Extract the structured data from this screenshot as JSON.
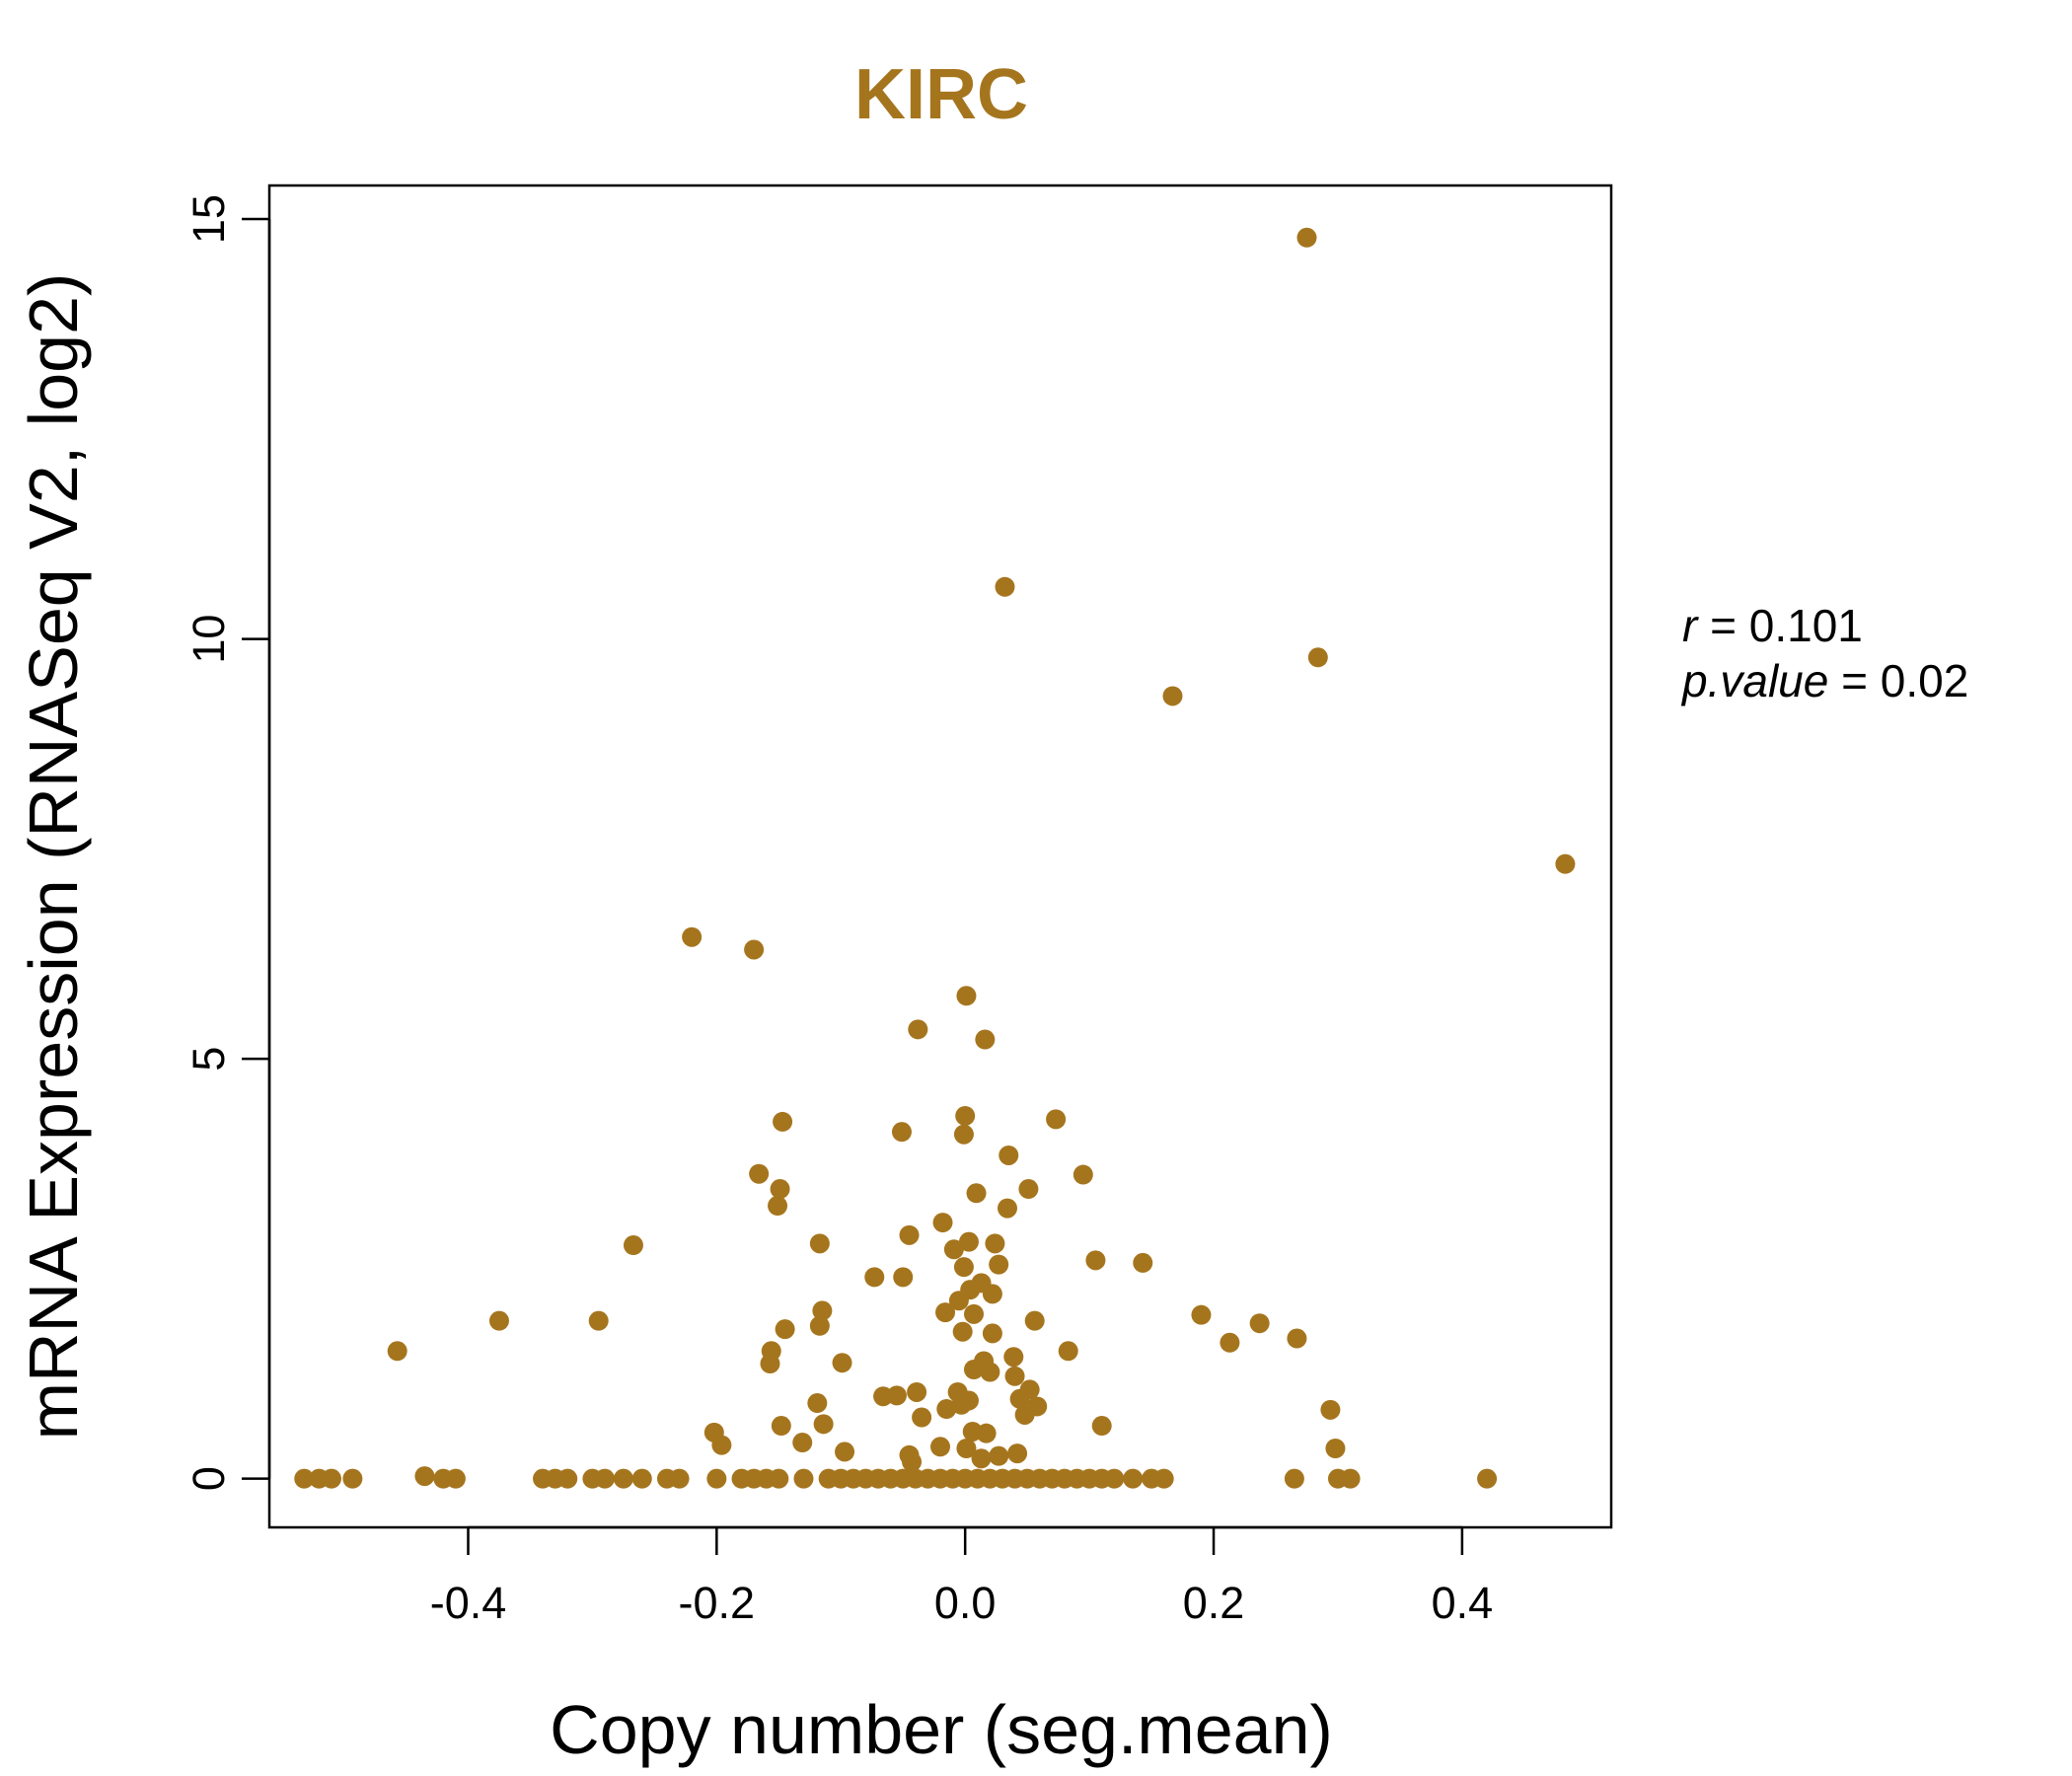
{
  "chart_data": {
    "type": "scatter",
    "title": "KIRC",
    "xlabel": "Copy number (seg.mean)",
    "ylabel": "mRNA Expression (RNASeq V2, log2)",
    "xlim": [
      -0.56,
      0.52
    ],
    "ylim": [
      -0.58,
      15.4
    ],
    "x_ticks": [
      -0.4,
      -0.2,
      0.0,
      0.2,
      0.4
    ],
    "x_tick_labels": [
      "-0.4",
      "-0.2",
      "0.0",
      "0.2",
      "0.4"
    ],
    "y_ticks": [
      0,
      5,
      10,
      15
    ],
    "y_tick_labels": [
      "0",
      "5",
      "10",
      "15"
    ],
    "grid": false,
    "point_color": "#A5751E",
    "title_color": "#A5751E",
    "stats": {
      "r_symbol": "r",
      "r_value": "0.101",
      "p_symbol": "p.value",
      "p_value": "0.02"
    },
    "points": [
      [
        0.275,
        14.78
      ],
      [
        0.032,
        10.62
      ],
      [
        0.284,
        9.78
      ],
      [
        0.167,
        9.32
      ],
      [
        0.483,
        7.32
      ],
      [
        -0.22,
        6.45
      ],
      [
        -0.17,
        6.3
      ],
      [
        0.001,
        5.75
      ],
      [
        -0.038,
        5.35
      ],
      [
        0.016,
        5.23
      ],
      [
        -0.147,
        4.25
      ],
      [
        0.0,
        4.32
      ],
      [
        0.073,
        4.28
      ],
      [
        -0.051,
        4.13
      ],
      [
        -0.001,
        4.1
      ],
      [
        0.035,
        3.85
      ],
      [
        -0.166,
        3.63
      ],
      [
        0.095,
        3.62
      ],
      [
        -0.149,
        3.45
      ],
      [
        0.051,
        3.45
      ],
      [
        0.009,
        3.4
      ],
      [
        -0.151,
        3.25
      ],
      [
        0.034,
        3.22
      ],
      [
        -0.018,
        3.05
      ],
      [
        -0.045,
        2.9
      ],
      [
        -0.267,
        2.78
      ],
      [
        -0.117,
        2.8
      ],
      [
        0.003,
        2.82
      ],
      [
        0.024,
        2.8
      ],
      [
        -0.009,
        2.73
      ],
      [
        0.105,
        2.6
      ],
      [
        0.143,
        2.57
      ],
      [
        0.027,
        2.55
      ],
      [
        -0.001,
        2.52
      ],
      [
        -0.073,
        2.4
      ],
      [
        -0.05,
        2.4
      ],
      [
        0.013,
        2.33
      ],
      [
        0.004,
        2.25
      ],
      [
        0.022,
        2.2
      ],
      [
        -0.005,
        2.12
      ],
      [
        -0.115,
        2.0
      ],
      [
        -0.016,
        1.98
      ],
      [
        0.007,
        1.96
      ],
      [
        0.19,
        1.95
      ],
      [
        -0.375,
        1.88
      ],
      [
        -0.295,
        1.88
      ],
      [
        0.056,
        1.88
      ],
      [
        0.237,
        1.85
      ],
      [
        -0.117,
        1.82
      ],
      [
        -0.145,
        1.78
      ],
      [
        -0.002,
        1.75
      ],
      [
        0.022,
        1.73
      ],
      [
        0.267,
        1.67
      ],
      [
        0.213,
        1.62
      ],
      [
        -0.457,
        1.52
      ],
      [
        -0.156,
        1.52
      ],
      [
        0.083,
        1.52
      ],
      [
        0.039,
        1.45
      ],
      [
        0.015,
        1.4
      ],
      [
        -0.099,
        1.38
      ],
      [
        -0.157,
        1.37
      ],
      [
        0.007,
        1.3
      ],
      [
        0.02,
        1.27
      ],
      [
        0.04,
        1.22
      ],
      [
        -0.039,
        1.03
      ],
      [
        -0.066,
        0.98
      ],
      [
        -0.055,
        0.99
      ],
      [
        -0.006,
        1.03
      ],
      [
        0.052,
        1.06
      ],
      [
        0.044,
        0.95
      ],
      [
        0.003,
        0.93
      ],
      [
        -0.119,
        0.9
      ],
      [
        -0.003,
        0.88
      ],
      [
        0.058,
        0.86
      ],
      [
        -0.015,
        0.83
      ],
      [
        0.294,
        0.82
      ],
      [
        -0.035,
        0.73
      ],
      [
        0.048,
        0.76
      ],
      [
        -0.148,
        0.63
      ],
      [
        -0.114,
        0.65
      ],
      [
        0.11,
        0.63
      ],
      [
        -0.202,
        0.55
      ],
      [
        0.006,
        0.56
      ],
      [
        0.017,
        0.54
      ],
      [
        -0.196,
        0.4
      ],
      [
        -0.131,
        0.43
      ],
      [
        -0.02,
        0.38
      ],
      [
        0.001,
        0.36
      ],
      [
        0.298,
        0.36
      ],
      [
        -0.097,
        0.32
      ],
      [
        0.042,
        0.3
      ],
      [
        -0.045,
        0.28
      ],
      [
        0.027,
        0.27
      ],
      [
        0.013,
        0.24
      ],
      [
        -0.043,
        0.2
      ],
      [
        -0.435,
        0.03
      ],
      [
        0.265,
        0.0
      ],
      [
        0.42,
        0.0
      ],
      [
        -0.532,
        0.0
      ],
      [
        -0.52,
        0.0
      ],
      [
        -0.51,
        0.0
      ],
      [
        -0.493,
        0.0
      ],
      [
        -0.42,
        0.0
      ],
      [
        -0.41,
        0.0
      ],
      [
        -0.34,
        0.0
      ],
      [
        -0.33,
        0.0
      ],
      [
        -0.32,
        0.0
      ],
      [
        -0.3,
        0.0
      ],
      [
        -0.29,
        0.0
      ],
      [
        -0.275,
        0.0
      ],
      [
        -0.26,
        0.0
      ],
      [
        -0.24,
        0.0
      ],
      [
        -0.23,
        0.0
      ],
      [
        -0.2,
        0.0
      ],
      [
        -0.18,
        0.0
      ],
      [
        -0.17,
        0.0
      ],
      [
        -0.16,
        0.0
      ],
      [
        -0.15,
        0.0
      ],
      [
        -0.13,
        0.0
      ],
      [
        -0.11,
        0.0
      ],
      [
        -0.1,
        0.0
      ],
      [
        -0.09,
        0.0
      ],
      [
        -0.08,
        0.0
      ],
      [
        -0.07,
        0.0
      ],
      [
        -0.06,
        0.0
      ],
      [
        -0.05,
        0.0
      ],
      [
        -0.04,
        0.0
      ],
      [
        -0.03,
        0.0
      ],
      [
        -0.02,
        0.0
      ],
      [
        -0.01,
        0.0
      ],
      [
        0.0,
        0.0
      ],
      [
        0.01,
        0.0
      ],
      [
        0.02,
        0.0
      ],
      [
        0.03,
        0.0
      ],
      [
        0.04,
        0.0
      ],
      [
        0.05,
        0.0
      ],
      [
        0.06,
        0.0
      ],
      [
        0.07,
        0.0
      ],
      [
        0.08,
        0.0
      ],
      [
        0.09,
        0.0
      ],
      [
        0.1,
        0.0
      ],
      [
        0.11,
        0.0
      ],
      [
        0.12,
        0.0
      ],
      [
        0.135,
        0.0
      ],
      [
        0.15,
        0.0
      ],
      [
        0.16,
        0.0
      ],
      [
        0.3,
        0.0
      ],
      [
        0.31,
        0.0
      ]
    ]
  }
}
